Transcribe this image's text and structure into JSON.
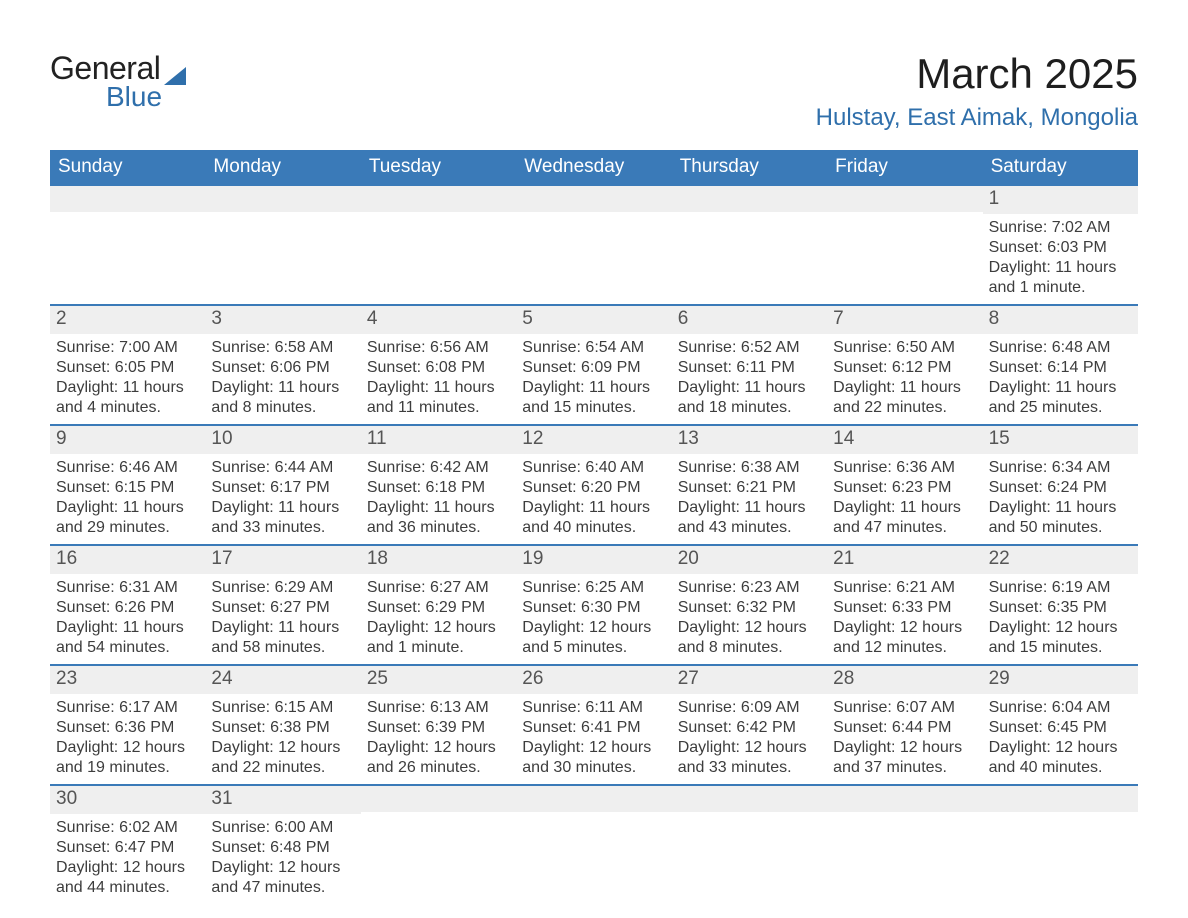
{
  "logo": {
    "text1": "General",
    "text2": "Blue"
  },
  "title": "March 2025",
  "location": "Hulstay, East Aimak, Mongolia",
  "colors": {
    "header_bg": "#3a7ab8",
    "header_text": "#ffffff",
    "daynum_bg": "#efefef",
    "border": "#3a7ab8",
    "logo_accent": "#2f6fab",
    "body_text": "#3a3a3a"
  },
  "daysOfWeek": [
    "Sunday",
    "Monday",
    "Tuesday",
    "Wednesday",
    "Thursday",
    "Friday",
    "Saturday"
  ],
  "weeks": [
    [
      {
        "day": "",
        "sunrise": "",
        "sunset": "",
        "daylight": ""
      },
      {
        "day": "",
        "sunrise": "",
        "sunset": "",
        "daylight": ""
      },
      {
        "day": "",
        "sunrise": "",
        "sunset": "",
        "daylight": ""
      },
      {
        "day": "",
        "sunrise": "",
        "sunset": "",
        "daylight": ""
      },
      {
        "day": "",
        "sunrise": "",
        "sunset": "",
        "daylight": ""
      },
      {
        "day": "",
        "sunrise": "",
        "sunset": "",
        "daylight": ""
      },
      {
        "day": "1",
        "sunrise": "Sunrise: 7:02 AM",
        "sunset": "Sunset: 6:03 PM",
        "daylight": "Daylight: 11 hours and 1 minute."
      }
    ],
    [
      {
        "day": "2",
        "sunrise": "Sunrise: 7:00 AM",
        "sunset": "Sunset: 6:05 PM",
        "daylight": "Daylight: 11 hours and 4 minutes."
      },
      {
        "day": "3",
        "sunrise": "Sunrise: 6:58 AM",
        "sunset": "Sunset: 6:06 PM",
        "daylight": "Daylight: 11 hours and 8 minutes."
      },
      {
        "day": "4",
        "sunrise": "Sunrise: 6:56 AM",
        "sunset": "Sunset: 6:08 PM",
        "daylight": "Daylight: 11 hours and 11 minutes."
      },
      {
        "day": "5",
        "sunrise": "Sunrise: 6:54 AM",
        "sunset": "Sunset: 6:09 PM",
        "daylight": "Daylight: 11 hours and 15 minutes."
      },
      {
        "day": "6",
        "sunrise": "Sunrise: 6:52 AM",
        "sunset": "Sunset: 6:11 PM",
        "daylight": "Daylight: 11 hours and 18 minutes."
      },
      {
        "day": "7",
        "sunrise": "Sunrise: 6:50 AM",
        "sunset": "Sunset: 6:12 PM",
        "daylight": "Daylight: 11 hours and 22 minutes."
      },
      {
        "day": "8",
        "sunrise": "Sunrise: 6:48 AM",
        "sunset": "Sunset: 6:14 PM",
        "daylight": "Daylight: 11 hours and 25 minutes."
      }
    ],
    [
      {
        "day": "9",
        "sunrise": "Sunrise: 6:46 AM",
        "sunset": "Sunset: 6:15 PM",
        "daylight": "Daylight: 11 hours and 29 minutes."
      },
      {
        "day": "10",
        "sunrise": "Sunrise: 6:44 AM",
        "sunset": "Sunset: 6:17 PM",
        "daylight": "Daylight: 11 hours and 33 minutes."
      },
      {
        "day": "11",
        "sunrise": "Sunrise: 6:42 AM",
        "sunset": "Sunset: 6:18 PM",
        "daylight": "Daylight: 11 hours and 36 minutes."
      },
      {
        "day": "12",
        "sunrise": "Sunrise: 6:40 AM",
        "sunset": "Sunset: 6:20 PM",
        "daylight": "Daylight: 11 hours and 40 minutes."
      },
      {
        "day": "13",
        "sunrise": "Sunrise: 6:38 AM",
        "sunset": "Sunset: 6:21 PM",
        "daylight": "Daylight: 11 hours and 43 minutes."
      },
      {
        "day": "14",
        "sunrise": "Sunrise: 6:36 AM",
        "sunset": "Sunset: 6:23 PM",
        "daylight": "Daylight: 11 hours and 47 minutes."
      },
      {
        "day": "15",
        "sunrise": "Sunrise: 6:34 AM",
        "sunset": "Sunset: 6:24 PM",
        "daylight": "Daylight: 11 hours and 50 minutes."
      }
    ],
    [
      {
        "day": "16",
        "sunrise": "Sunrise: 6:31 AM",
        "sunset": "Sunset: 6:26 PM",
        "daylight": "Daylight: 11 hours and 54 minutes."
      },
      {
        "day": "17",
        "sunrise": "Sunrise: 6:29 AM",
        "sunset": "Sunset: 6:27 PM",
        "daylight": "Daylight: 11 hours and 58 minutes."
      },
      {
        "day": "18",
        "sunrise": "Sunrise: 6:27 AM",
        "sunset": "Sunset: 6:29 PM",
        "daylight": "Daylight: 12 hours and 1 minute."
      },
      {
        "day": "19",
        "sunrise": "Sunrise: 6:25 AM",
        "sunset": "Sunset: 6:30 PM",
        "daylight": "Daylight: 12 hours and 5 minutes."
      },
      {
        "day": "20",
        "sunrise": "Sunrise: 6:23 AM",
        "sunset": "Sunset: 6:32 PM",
        "daylight": "Daylight: 12 hours and 8 minutes."
      },
      {
        "day": "21",
        "sunrise": "Sunrise: 6:21 AM",
        "sunset": "Sunset: 6:33 PM",
        "daylight": "Daylight: 12 hours and 12 minutes."
      },
      {
        "day": "22",
        "sunrise": "Sunrise: 6:19 AM",
        "sunset": "Sunset: 6:35 PM",
        "daylight": "Daylight: 12 hours and 15 minutes."
      }
    ],
    [
      {
        "day": "23",
        "sunrise": "Sunrise: 6:17 AM",
        "sunset": "Sunset: 6:36 PM",
        "daylight": "Daylight: 12 hours and 19 minutes."
      },
      {
        "day": "24",
        "sunrise": "Sunrise: 6:15 AM",
        "sunset": "Sunset: 6:38 PM",
        "daylight": "Daylight: 12 hours and 22 minutes."
      },
      {
        "day": "25",
        "sunrise": "Sunrise: 6:13 AM",
        "sunset": "Sunset: 6:39 PM",
        "daylight": "Daylight: 12 hours and 26 minutes."
      },
      {
        "day": "26",
        "sunrise": "Sunrise: 6:11 AM",
        "sunset": "Sunset: 6:41 PM",
        "daylight": "Daylight: 12 hours and 30 minutes."
      },
      {
        "day": "27",
        "sunrise": "Sunrise: 6:09 AM",
        "sunset": "Sunset: 6:42 PM",
        "daylight": "Daylight: 12 hours and 33 minutes."
      },
      {
        "day": "28",
        "sunrise": "Sunrise: 6:07 AM",
        "sunset": "Sunset: 6:44 PM",
        "daylight": "Daylight: 12 hours and 37 minutes."
      },
      {
        "day": "29",
        "sunrise": "Sunrise: 6:04 AM",
        "sunset": "Sunset: 6:45 PM",
        "daylight": "Daylight: 12 hours and 40 minutes."
      }
    ],
    [
      {
        "day": "30",
        "sunrise": "Sunrise: 6:02 AM",
        "sunset": "Sunset: 6:47 PM",
        "daylight": "Daylight: 12 hours and 44 minutes."
      },
      {
        "day": "31",
        "sunrise": "Sunrise: 6:00 AM",
        "sunset": "Sunset: 6:48 PM",
        "daylight": "Daylight: 12 hours and 47 minutes."
      },
      {
        "day": "",
        "sunrise": "",
        "sunset": "",
        "daylight": ""
      },
      {
        "day": "",
        "sunrise": "",
        "sunset": "",
        "daylight": ""
      },
      {
        "day": "",
        "sunrise": "",
        "sunset": "",
        "daylight": ""
      },
      {
        "day": "",
        "sunrise": "",
        "sunset": "",
        "daylight": ""
      },
      {
        "day": "",
        "sunrise": "",
        "sunset": "",
        "daylight": ""
      }
    ]
  ]
}
